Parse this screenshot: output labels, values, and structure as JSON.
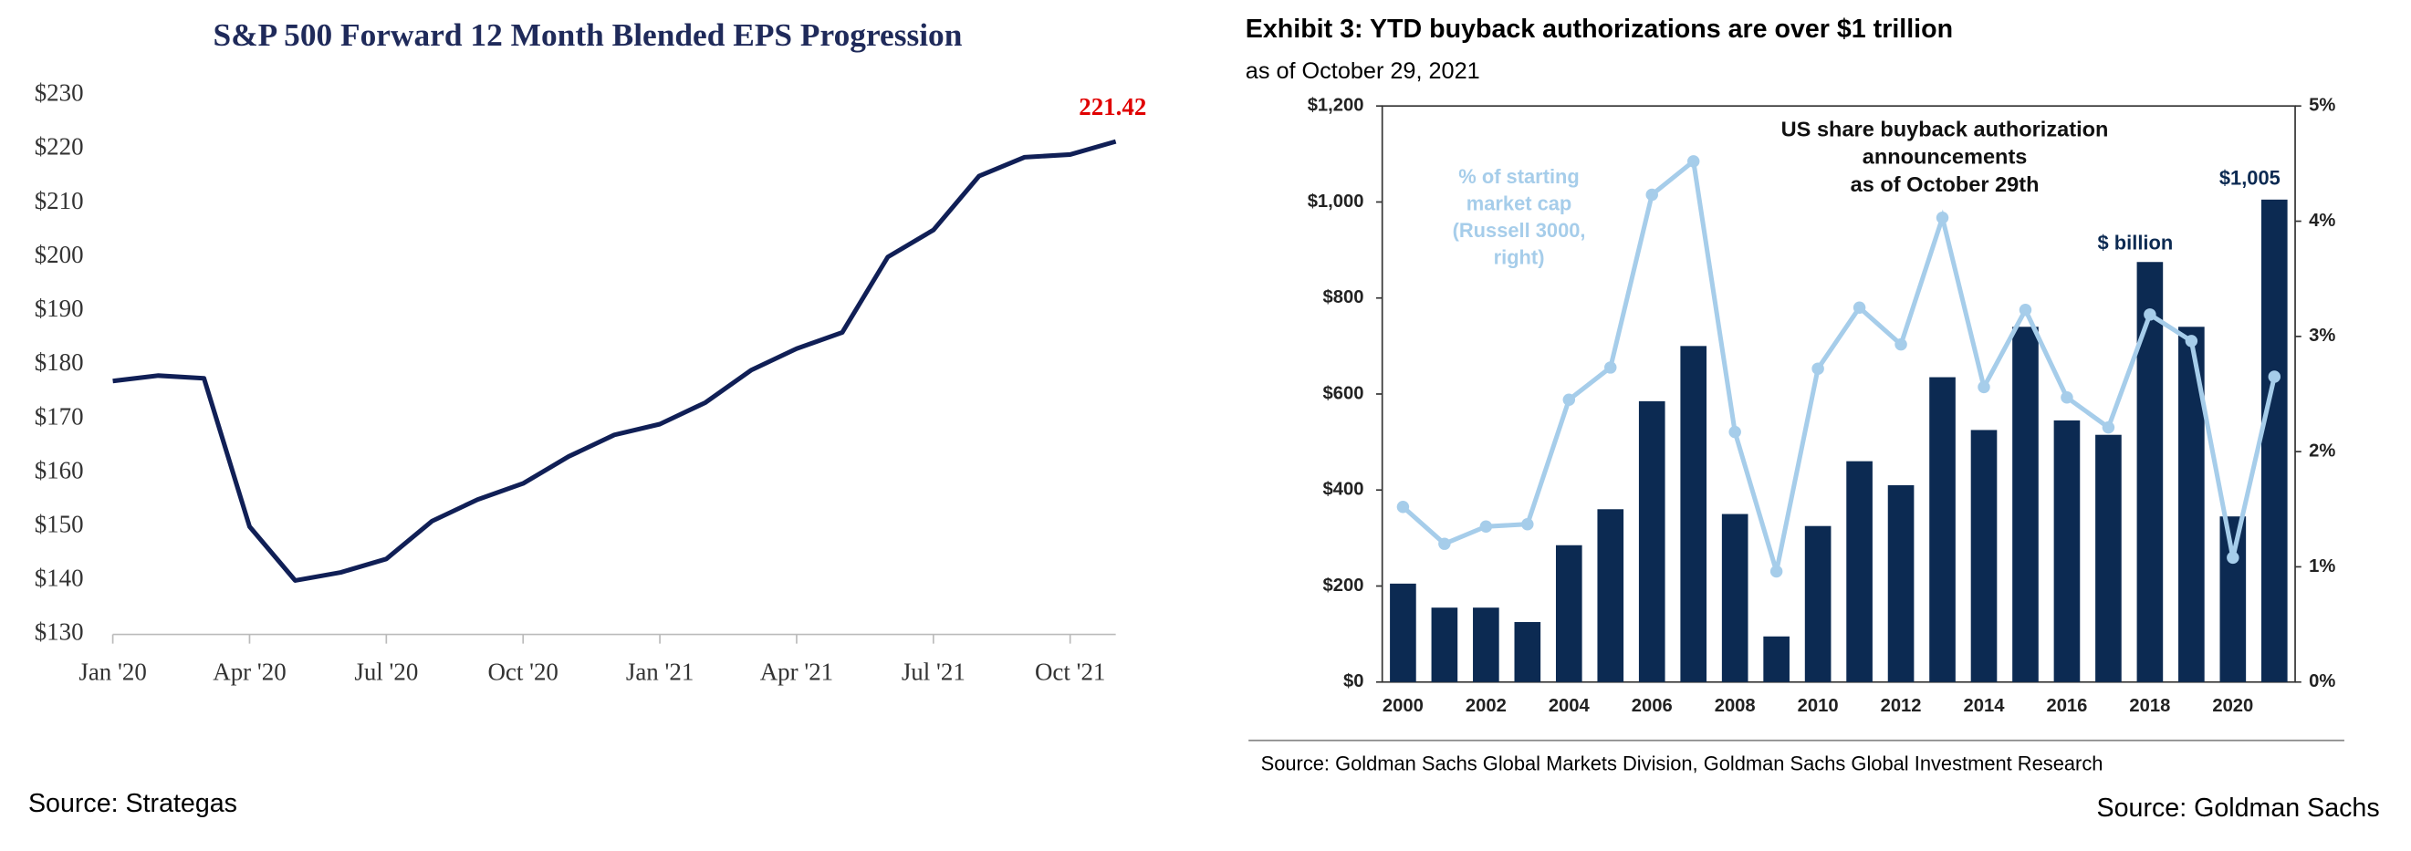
{
  "chart_data": [
    {
      "type": "line",
      "title": "S&P 500 Forward 12 Month Blended EPS Progression",
      "caption": "Source: Strategas",
      "x": [
        "2020-01",
        "2020-02",
        "2020-03",
        "2020-04",
        "2020-05",
        "2020-06",
        "2020-07",
        "2020-08",
        "2020-09",
        "2020-10",
        "2020-11",
        "2020-12",
        "2021-01",
        "2021-02",
        "2021-03",
        "2021-04",
        "2021-05",
        "2021-06",
        "2021-07",
        "2021-08",
        "2021-09",
        "2021-10",
        "2021-11"
      ],
      "series": [
        {
          "color": "#101f56",
          "values": [
            177,
            178,
            177.5,
            150,
            140,
            141.5,
            144,
            151,
            155,
            158,
            163,
            167,
            169,
            173,
            179,
            183,
            186,
            200,
            205,
            215,
            218.5,
            219,
            221.42
          ]
        }
      ],
      "xlim": [
        "2020-01",
        "2021-11"
      ],
      "xticks": [
        {
          "value": "2020-01",
          "label": "Jan '20"
        },
        {
          "value": "2020-04",
          "label": "Apr '20"
        },
        {
          "value": "2020-07",
          "label": "Jul '20"
        },
        {
          "value": "2020-10",
          "label": "Oct '20"
        },
        {
          "value": "2021-01",
          "label": "Jan '21"
        },
        {
          "value": "2021-04",
          "label": "Apr '21"
        },
        {
          "value": "2021-07",
          "label": "Jul '21"
        },
        {
          "value": "2021-10",
          "label": "Oct '21"
        }
      ],
      "ylim": [
        130,
        230
      ],
      "yticks": [
        {
          "value": 130,
          "label": "$130"
        },
        {
          "value": 140,
          "label": "$140"
        },
        {
          "value": 150,
          "label": "$150"
        },
        {
          "value": 160,
          "label": "$160"
        },
        {
          "value": 170,
          "label": "$170"
        },
        {
          "value": 180,
          "label": "$180"
        },
        {
          "value": 190,
          "label": "$190"
        },
        {
          "value": 200,
          "label": "$200"
        },
        {
          "value": 210,
          "label": "$210"
        },
        {
          "value": 220,
          "label": "$220"
        },
        {
          "value": 230,
          "label": "$230"
        }
      ],
      "end_label_color": "#e00000"
    },
    {
      "type": "bar",
      "title": "Exhibit 3: YTD buyback authorizations are over $1 trillion",
      "subtitle": "as of October 29, 2021",
      "source": "Source: Goldman Sachs Global Markets Division, Goldman Sachs Global Investment Research",
      "caption": "Source: Goldman Sachs",
      "categories": [
        "2000",
        null,
        "2002",
        null,
        "2004",
        null,
        "2006",
        null,
        "2008",
        null,
        "2010",
        null,
        "2012",
        null,
        "2014",
        null,
        "2016",
        null,
        "2018",
        null,
        "2020",
        null
      ],
      "series": [
        {
          "type": "bar",
          "axis": "y",
          "color": "#0c2a52",
          "values": [
            205,
            155,
            155,
            125,
            285,
            360,
            585,
            700,
            350,
            95,
            325,
            460,
            410,
            635,
            525,
            740,
            545,
            515,
            875,
            740,
            345,
            1005
          ],
          "value_labels": [
            null,
            null,
            null,
            null,
            null,
            null,
            null,
            null,
            null,
            null,
            null,
            null,
            null,
            null,
            null,
            null,
            null,
            null,
            null,
            null,
            null,
            "$1,005"
          ]
        },
        {
          "type": "line",
          "axis": "y2",
          "color": "#a6cdea",
          "values": [
            1.52,
            1.2,
            1.35,
            1.37,
            2.45,
            2.73,
            4.23,
            4.52,
            2.17,
            0.96,
            2.72,
            3.25,
            2.93,
            4.03,
            2.56,
            3.23,
            2.47,
            2.21,
            3.19,
            2.96,
            1.08,
            2.65
          ]
        }
      ],
      "ylim": [
        0,
        1200
      ],
      "yticks": [
        {
          "value": 0,
          "label": "$0"
        },
        {
          "value": 200,
          "label": "$200"
        },
        {
          "value": 400,
          "label": "$400"
        },
        {
          "value": 600,
          "label": "$600"
        },
        {
          "value": 800,
          "label": "$800"
        },
        {
          "value": 1000,
          "label": "$1,000"
        },
        {
          "value": 1200,
          "label": "$1,200"
        }
      ],
      "y2lim": [
        0,
        5
      ],
      "y2ticks": [
        {
          "value": 0,
          "label": "0%"
        },
        {
          "value": 1,
          "label": "1%"
        },
        {
          "value": 2,
          "label": "2%"
        },
        {
          "value": 3,
          "label": "3%"
        },
        {
          "value": 4,
          "label": "4%"
        },
        {
          "value": 5,
          "label": "5%"
        }
      ],
      "annotations": [
        {
          "lines": [
            "US share buyback authorization",
            "announcements",
            "as of October 29th"
          ]
        },
        {
          "lines": [
            "% of starting",
            "market cap",
            "(Russell 3000,",
            "right)"
          ]
        },
        {
          "lines": [
            "$ billion"
          ]
        }
      ]
    }
  ]
}
